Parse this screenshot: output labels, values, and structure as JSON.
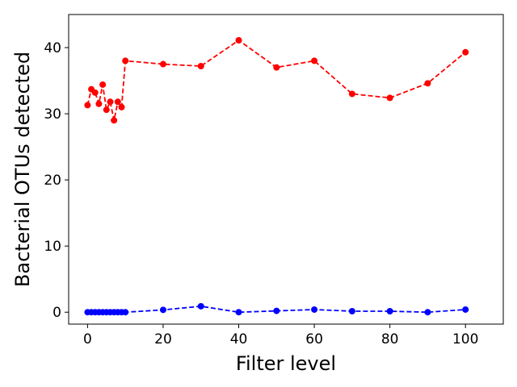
{
  "chart_data": {
    "type": "line",
    "title": "",
    "xlabel": "Filter level",
    "ylabel": "Bacterial OTUs detected",
    "xlim": [
      -5,
      110
    ],
    "ylim": [
      -1.8,
      45
    ],
    "xticks": [
      0,
      20,
      40,
      60,
      80,
      100
    ],
    "yticks": [
      0,
      10,
      20,
      30,
      40
    ],
    "grid": false,
    "legend": "none",
    "series": [
      {
        "color": "#ff0000",
        "line_style": "dashed",
        "marker": "circle",
        "x": [
          0,
          1,
          2,
          3,
          4,
          5,
          6,
          7,
          8,
          9,
          10,
          20,
          30,
          40,
          50,
          60,
          70,
          80,
          90,
          100
        ],
        "y": [
          31.3,
          33.7,
          33.2,
          31.5,
          34.4,
          30.6,
          31.8,
          29.0,
          31.8,
          31.0,
          38.0,
          37.5,
          37.2,
          41.1,
          37.0,
          38.0,
          33.0,
          32.4,
          34.6,
          39.3
        ]
      },
      {
        "color": "#0000ff",
        "line_style": "dashed",
        "marker": "circle",
        "x": [
          0,
          1,
          2,
          3,
          4,
          5,
          6,
          7,
          8,
          9,
          10,
          20,
          30,
          40,
          50,
          60,
          70,
          80,
          90,
          100
        ],
        "y": [
          0,
          0,
          0,
          0,
          0,
          0,
          0,
          0,
          0,
          0,
          0,
          0.35,
          0.9,
          0,
          0.2,
          0.4,
          0.15,
          0.15,
          0,
          0.4
        ]
      }
    ]
  }
}
